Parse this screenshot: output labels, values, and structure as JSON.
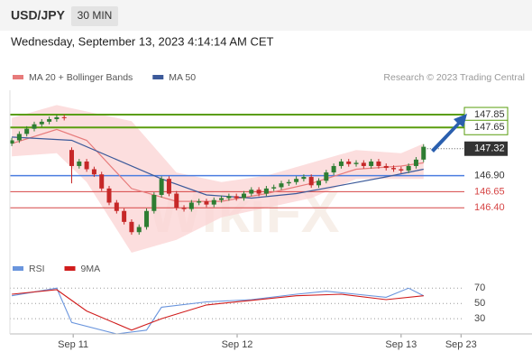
{
  "header": {
    "symbol": "USD/JPY",
    "timeframe": "30 MIN",
    "datetime": "Wednesday, September 13, 2023 4:14:14 AM CET",
    "credit": "Research © 2023 Trading Central"
  },
  "watermark": "WikiFX",
  "chart_data": [
    {
      "type": "candlestick",
      "xlim": [
        -0.25,
        69
      ],
      "xticks": [
        {
          "value": 8.2,
          "label": "Sep 11"
        },
        {
          "value": 30.1,
          "label": "Sep 12"
        },
        {
          "value": 52,
          "label": "Sep 13"
        },
        {
          "value": 60,
          "label": "Sep 23"
        }
      ],
      "ylim": [
        145.7,
        148.23
      ],
      "up_color": "#2e7d32",
      "down_color": "#c62828",
      "open": [
        147.4,
        147.45,
        147.55,
        147.63,
        147.7,
        147.74,
        147.78,
        147.81,
        147.3,
        147.05,
        147.12,
        147.0,
        146.92,
        146.7,
        146.48,
        146.35,
        146.18,
        146.02,
        146.1,
        146.35,
        146.6,
        146.85,
        146.62,
        146.4,
        146.38,
        146.48,
        146.5,
        146.45,
        146.52,
        146.55,
        146.58,
        146.55,
        146.62,
        146.68,
        146.62,
        146.7,
        146.72,
        146.78,
        146.8,
        146.85,
        146.88,
        146.75,
        146.82,
        146.95,
        147.05,
        147.12,
        147.08,
        147.1,
        147.05,
        147.12,
        147.05,
        147.02,
        147.0,
        146.98,
        147.05,
        147.15
      ],
      "high": [
        147.49,
        147.59,
        147.67,
        147.74,
        147.78,
        147.82,
        147.85,
        147.85,
        147.34,
        147.16,
        147.16,
        147.04,
        146.96,
        146.74,
        146.52,
        146.39,
        146.22,
        146.14,
        146.39,
        146.64,
        146.89,
        146.89,
        146.66,
        146.44,
        146.52,
        146.54,
        146.54,
        146.56,
        146.59,
        146.62,
        146.62,
        146.66,
        146.72,
        146.72,
        146.74,
        146.76,
        146.82,
        146.84,
        146.89,
        146.92,
        146.92,
        146.86,
        146.99,
        147.09,
        147.16,
        147.16,
        147.14,
        147.14,
        147.16,
        147.16,
        147.09,
        147.06,
        147.04,
        147.09,
        147.19,
        147.39
      ],
      "low": [
        147.36,
        147.41,
        147.51,
        147.59,
        147.66,
        147.7,
        147.74,
        147.76,
        146.78,
        147.01,
        146.96,
        146.88,
        146.66,
        146.44,
        146.31,
        146.14,
        145.98,
        145.98,
        146.06,
        146.31,
        146.56,
        146.58,
        146.36,
        146.34,
        146.34,
        146.44,
        146.41,
        146.41,
        146.48,
        146.51,
        146.51,
        146.51,
        146.58,
        146.58,
        146.58,
        146.66,
        146.68,
        146.74,
        146.76,
        146.81,
        146.71,
        146.71,
        146.78,
        146.91,
        147.01,
        147.04,
        147.04,
        147.01,
        147.01,
        147.01,
        146.98,
        146.96,
        146.94,
        146.94,
        147.01,
        147.11
      ],
      "close": [
        147.45,
        147.55,
        147.63,
        147.7,
        147.74,
        147.78,
        147.81,
        147.8,
        147.05,
        147.12,
        147.0,
        146.92,
        146.7,
        146.48,
        146.35,
        146.18,
        146.02,
        146.1,
        146.35,
        146.6,
        146.85,
        146.62,
        146.4,
        146.38,
        146.48,
        146.5,
        146.45,
        146.52,
        146.55,
        146.58,
        146.55,
        146.62,
        146.68,
        146.62,
        146.7,
        146.72,
        146.78,
        146.8,
        146.85,
        146.88,
        146.75,
        146.82,
        146.95,
        147.05,
        147.12,
        147.08,
        147.1,
        147.05,
        147.12,
        147.05,
        147.02,
        147.0,
        146.98,
        147.05,
        147.15,
        147.35
      ],
      "band": {
        "color": "#fbd3d3",
        "x": [
          0,
          6,
          10,
          16,
          22,
          28,
          34,
          40,
          46,
          52,
          55
        ],
        "upper": [
          147.8,
          148.0,
          147.9,
          147.75,
          146.95,
          146.8,
          146.9,
          147.1,
          147.3,
          147.25,
          147.4
        ],
        "lower": [
          147.2,
          147.25,
          146.8,
          145.7,
          145.9,
          146.25,
          146.4,
          146.55,
          146.85,
          146.85,
          146.85
        ]
      },
      "series": [
        {
          "name": "MA 20 + Bollinger Bands",
          "color": "#e77b7b",
          "x": [
            0,
            6,
            10,
            16,
            22,
            28,
            34,
            40,
            46,
            52,
            55
          ],
          "values": [
            147.4,
            147.62,
            147.45,
            146.7,
            146.5,
            146.5,
            146.62,
            146.78,
            147.0,
            147.05,
            147.1
          ]
        },
        {
          "name": "MA 50",
          "color": "#3c5a9a",
          "x": [
            0,
            8,
            14,
            20,
            26,
            32,
            38,
            44,
            50,
            55
          ],
          "values": [
            147.5,
            147.45,
            147.15,
            146.85,
            146.6,
            146.55,
            146.62,
            146.75,
            146.88,
            147.0
          ]
        }
      ],
      "levels": [
        {
          "value": 147.85,
          "label": "147.85",
          "color": "#5a9e0f",
          "style": "resistance"
        },
        {
          "value": 147.65,
          "label": "147.65",
          "color": "#5a9e0f",
          "style": "resistance"
        },
        {
          "value": 147.32,
          "label": "147.32",
          "color": "#333333",
          "style": "current"
        },
        {
          "value": 146.9,
          "label": "146.90",
          "color": "#4a7de0",
          "style": "pivot"
        },
        {
          "value": 146.65,
          "label": "146.65",
          "color": "#d64545",
          "style": "support"
        },
        {
          "value": 146.4,
          "label": "146.40",
          "color": "#d64545",
          "style": "support"
        }
      ]
    },
    {
      "type": "line",
      "xlim": [
        -0.25,
        69
      ],
      "ylim": [
        10,
        94
      ],
      "yticks": [
        30,
        50,
        70
      ],
      "grid": true,
      "series": [
        {
          "name": "RSI",
          "color": "#6a95dd",
          "x": [
            0,
            6,
            8,
            14,
            18,
            20,
            26,
            32,
            38,
            42,
            46,
            50,
            53,
            55
          ],
          "values": [
            60,
            70,
            25,
            10,
            15,
            45,
            52,
            55,
            62,
            66,
            62,
            58,
            70,
            60
          ]
        },
        {
          "name": "9MA",
          "color": "#d01c1c",
          "x": [
            0,
            6,
            10,
            16,
            20,
            26,
            32,
            38,
            44,
            50,
            55
          ],
          "values": [
            62,
            68,
            40,
            15,
            30,
            48,
            54,
            60,
            62,
            55,
            60
          ]
        }
      ]
    }
  ]
}
